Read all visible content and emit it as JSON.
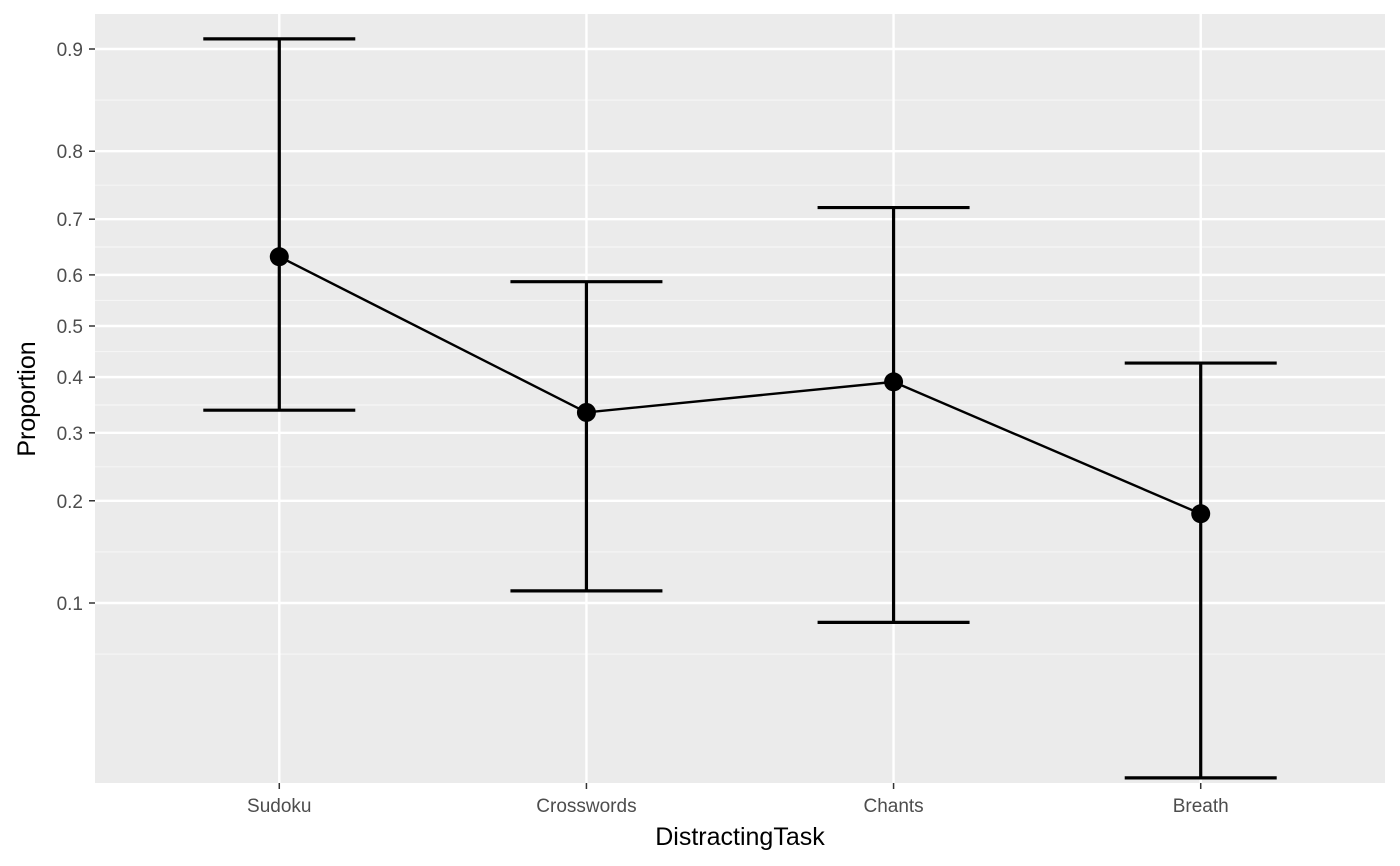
{
  "chart_data": {
    "type": "line",
    "xlabel": "DistractingTask",
    "ylabel": "Proportion",
    "categories": [
      "Sudoku",
      "Crosswords",
      "Chants",
      "Breath"
    ],
    "y_scale": "logit",
    "y_ticks": [
      0.1,
      0.2,
      0.3,
      0.4,
      0.5,
      0.6,
      0.7,
      0.8,
      0.9
    ],
    "y_tick_labels": [
      "0.1",
      "0.2",
      "0.3",
      "0.4",
      "0.5",
      "0.6",
      "0.7",
      "0.8",
      "0.9"
    ],
    "ylim": [
      0.02,
      0.92
    ],
    "grid": true,
    "legend": "none",
    "series": [
      {
        "values": [
          0.634,
          0.335,
          0.391,
          0.184
        ],
        "lower": [
          0.339,
          0.109,
          0.087,
          0.027
        ],
        "upper": [
          0.907,
          0.587,
          0.719,
          0.427
        ]
      }
    ],
    "colors": {
      "panel_background": "#ebebeb",
      "grid_major": "#ffffff",
      "grid_minor": "#f5f5f5",
      "series": "#000000",
      "tick_text": "#4d4d4d"
    }
  }
}
